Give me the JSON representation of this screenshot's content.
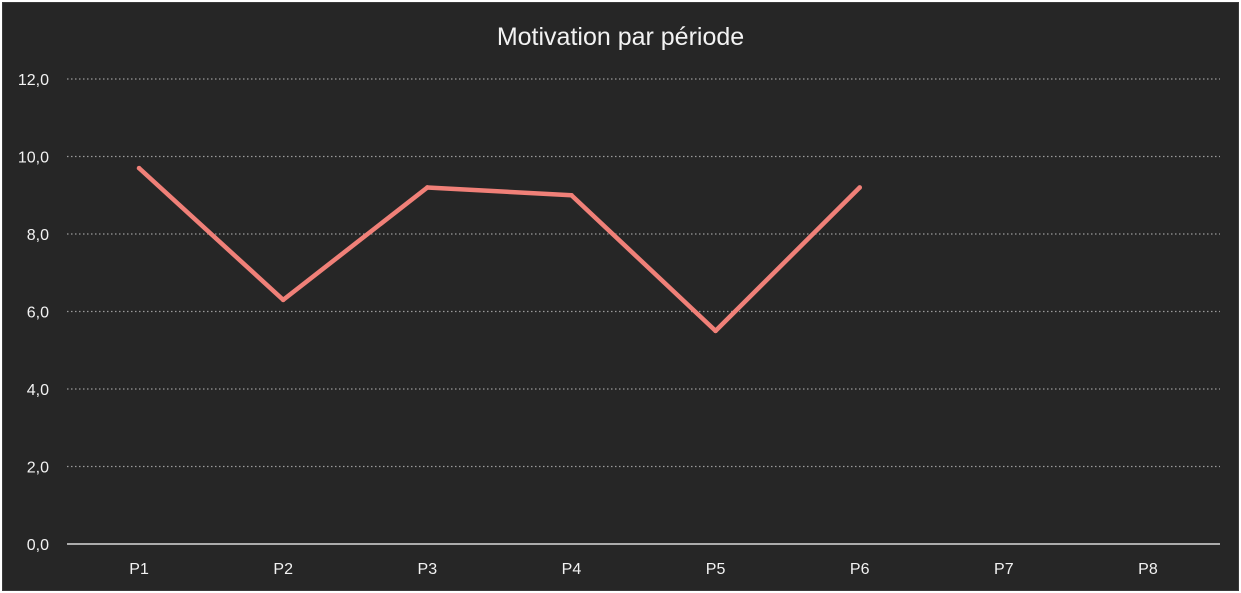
{
  "chart_data": {
    "type": "line",
    "title": "Motivation par période",
    "xlabel": "",
    "ylabel": "",
    "categories": [
      "P1",
      "P2",
      "P3",
      "P4",
      "P5",
      "P6",
      "P7",
      "P8"
    ],
    "series": [
      {
        "values": [
          9.7,
          6.3,
          9.2,
          9.0,
          5.5,
          9.2,
          null,
          null
        ],
        "color": "#f08078"
      }
    ],
    "ylim": [
      0,
      12
    ],
    "yticks": [
      "0,0",
      "2,0",
      "4,0",
      "6,0",
      "8,0",
      "10,0",
      "12,0"
    ],
    "ytick_values": [
      0,
      2,
      4,
      6,
      8,
      10,
      12
    ],
    "grid": true,
    "legend": "none"
  }
}
